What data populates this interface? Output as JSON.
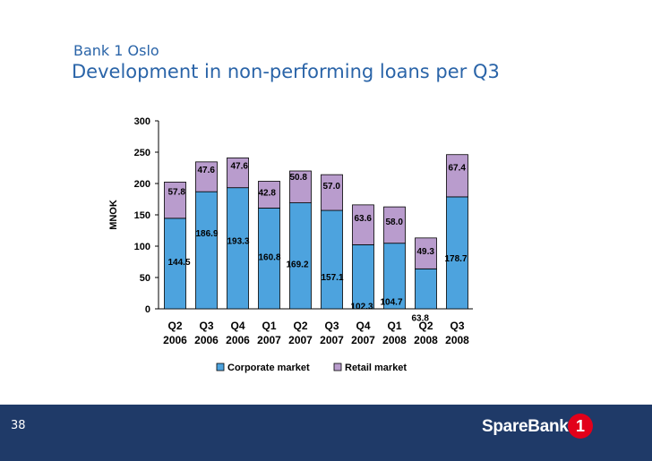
{
  "header": {
    "kicker": "Bank 1 Oslo",
    "title": "Development in non-performing loans per Q3"
  },
  "footer": {
    "page_number": "38",
    "logo_text": "SpareBank",
    "logo_mark": "1"
  },
  "colors": {
    "corporate": "#4da3de",
    "retail": "#b99ccd",
    "footer_bg": "#1f3a68",
    "title": "#2a64a8",
    "logo_mark": "#e2001a"
  },
  "chart_data": {
    "type": "bar",
    "stacked": true,
    "title": "",
    "ylabel": "MNOK",
    "xlabel": "",
    "ylim": [
      0,
      300
    ],
    "yticks": [
      0,
      50,
      100,
      150,
      200,
      250,
      300
    ],
    "grid": false,
    "legend_position": "bottom",
    "categories": [
      [
        "Q2",
        "2006"
      ],
      [
        "Q3",
        "2006"
      ],
      [
        "Q4",
        "2006"
      ],
      [
        "Q1",
        "2007"
      ],
      [
        "Q2",
        "2007"
      ],
      [
        "Q3",
        "2007"
      ],
      [
        "Q4",
        "2007"
      ],
      [
        "Q1",
        "2008"
      ],
      [
        "Q2",
        "2008"
      ],
      [
        "Q3",
        "2008"
      ]
    ],
    "series": [
      {
        "name": "Corporate market",
        "values": [
          144.5,
          186.9,
          193.3,
          160.8,
          169.2,
          157.1,
          102.3,
          104.7,
          63.8,
          178.7
        ]
      },
      {
        "name": "Retail market",
        "values": [
          57.8,
          47.6,
          47.6,
          42.8,
          50.8,
          57.0,
          63.6,
          58.0,
          49.3,
          67.4
        ]
      }
    ]
  }
}
